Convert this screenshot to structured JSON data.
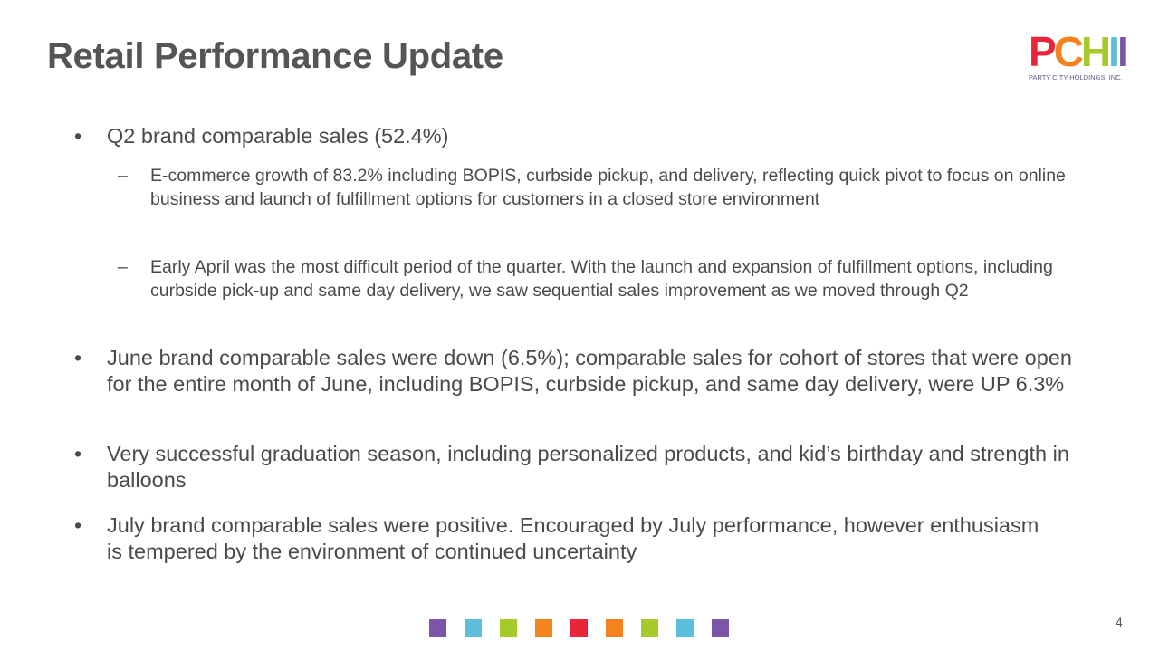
{
  "title": "Retail Performance Update",
  "logo": {
    "letters": [
      {
        "c": "P",
        "color": "#e8253a"
      },
      {
        "c": "C",
        "color": "#f5821f"
      },
      {
        "c": "H",
        "color": "#a6c92b"
      },
      {
        "c": "I",
        "color": "#5bbfdc"
      },
      {
        "c": "I",
        "color": "#7a55a8"
      }
    ],
    "text": "PCHI",
    "tagline": "PARTY CITY HOLDINGS, INC."
  },
  "bullets": [
    {
      "text": "Q2 brand comparable sales (52.4%)"
    },
    {
      "text": "E-commerce growth of 83.2% including BOPIS, curbside pickup, and delivery, reflecting quick pivot to focus on online business and launch of fulfillment options for customers in a closed store environment"
    },
    {
      "text": "Early April was the most difficult period of the quarter. With the launch and expansion of fulfillment options, including curbside pick-up and same day delivery, we saw sequential sales improvement as we moved through Q2"
    },
    {
      "text": "June brand comparable sales were down (6.5%); comparable sales for cohort of stores that were open for the entire month of June, including BOPIS, curbside pickup, and same day delivery, were UP 6.3%"
    },
    {
      "text": "Very successful graduation season, including personalized products, and kid’s birthday and strength in balloons"
    },
    {
      "text": "July brand comparable sales were positive. Encouraged by July performance, however enthusiasm is tempered by the environment of continued uncertainty"
    }
  ],
  "bullet_glyph": "•",
  "dash_glyph": "–",
  "squares": [
    "#7a55a8",
    "#5bbfdc",
    "#a6c92b",
    "#f5821f",
    "#e8253a",
    "#f5821f",
    "#a6c92b",
    "#5bbfdc",
    "#7a55a8"
  ],
  "page_number": "4"
}
